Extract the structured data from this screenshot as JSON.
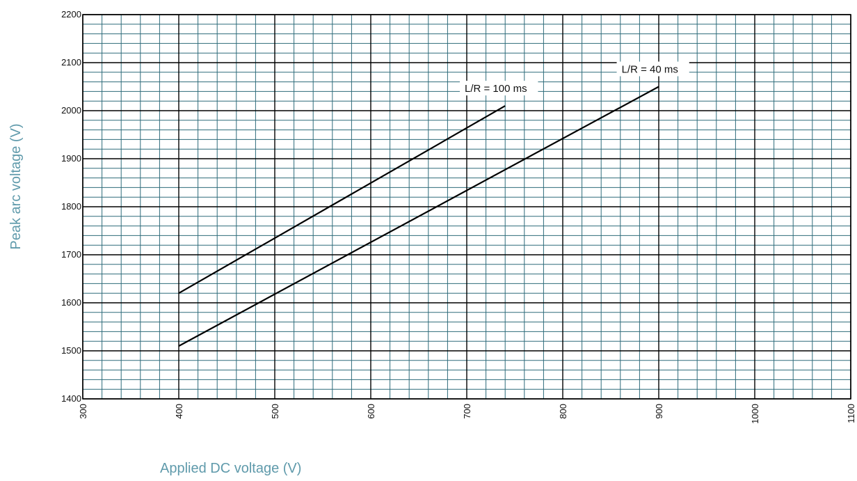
{
  "chart_data": {
    "type": "line",
    "title": "",
    "xlabel": "Applied DC voltage (V)",
    "ylabel": "Peak arc voltage (V)",
    "xlim": [
      300,
      1100
    ],
    "ylim": [
      1400,
      2200
    ],
    "x_ticks": [
      "300",
      "400",
      "500",
      "600",
      "700",
      "800",
      "900",
      "1000",
      "1100"
    ],
    "y_ticks": [
      "1400",
      "1500",
      "1600",
      "1700",
      "1800",
      "1900",
      "2000",
      "2100",
      "2200"
    ],
    "grid": true,
    "legend": "none",
    "series": [
      {
        "name": "L/R = 100 ms",
        "x": [
          400,
          740
        ],
        "y": [
          1620,
          2010
        ]
      },
      {
        "name": "L/R = 40 ms",
        "x": [
          400,
          900
        ],
        "y": [
          1510,
          2050
        ]
      }
    ]
  },
  "colors": {
    "grid_minor": "#2e6b7a",
    "grid_major": "#000000",
    "line": "#000000",
    "axis_title": "#5f9aab"
  }
}
